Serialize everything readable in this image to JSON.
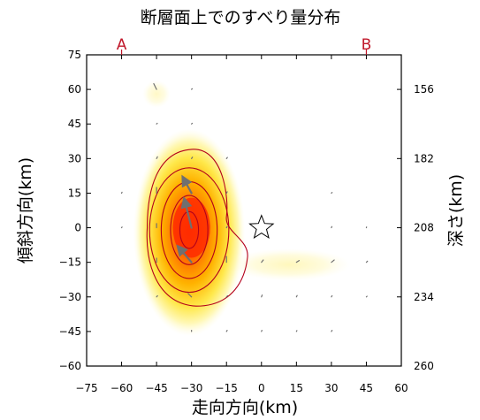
{
  "chart_data": {
    "type": "heatmap",
    "title": "断層面上でのすべり量分布",
    "xlabel": "走向方向(km)",
    "ylabel": "傾斜方向(km)",
    "y2label": "深さ(km)",
    "xlim": [
      -75,
      60
    ],
    "ylim": [
      -60,
      75
    ],
    "x_ticks": [
      -75,
      -60,
      -45,
      -30,
      -15,
      0,
      15,
      30,
      45,
      60
    ],
    "x_tick_labels": [
      "−75",
      "−60",
      "−45",
      "−30",
      "−15",
      "0",
      "15",
      "30",
      "45",
      "60"
    ],
    "y_ticks": [
      -60,
      -45,
      -30,
      -15,
      0,
      15,
      30,
      45,
      60,
      75
    ],
    "y_tick_labels": [
      "−60",
      "−45",
      "−30",
      "−15",
      "0",
      "15",
      "30",
      "45",
      "60",
      "75"
    ],
    "depth_ticks": [
      {
        "y": 60,
        "label": "156"
      },
      {
        "y": 30,
        "label": "182"
      },
      {
        "y": 0,
        "label": "208"
      },
      {
        "y": -30,
        "label": "234"
      },
      {
        "y": -60,
        "label": "260"
      }
    ],
    "section_ends": [
      {
        "label": "A",
        "x": -60
      },
      {
        "label": "B",
        "x": 45
      }
    ],
    "hypocenter": {
      "x": 0,
      "y": 0
    },
    "slip_peak": {
      "x": -30,
      "y": 0
    },
    "colors": {
      "low": "#fffde0",
      "mid": "#ffd500",
      "high": "#ff2b00",
      "contour": "#b3001b",
      "vector": "#707070",
      "ends": "#c0172a"
    },
    "slip_vectors": [
      {
        "x": -45,
        "y": 60,
        "dx": -1.2,
        "dy": 2.5
      },
      {
        "x": -30,
        "y": 60,
        "dx": 0.3,
        "dy": 0.3
      },
      {
        "x": -45,
        "y": 45,
        "dx": 0.3,
        "dy": 0.3
      },
      {
        "x": -30,
        "y": 45,
        "dx": 0.3,
        "dy": 0.3
      },
      {
        "x": -45,
        "y": 30,
        "dx": 0.4,
        "dy": 0.8
      },
      {
        "x": -30,
        "y": 30,
        "dx": 0.4,
        "dy": 0.6
      },
      {
        "x": -15,
        "y": 30,
        "dx": 0.4,
        "dy": 0.5
      },
      {
        "x": -60,
        "y": 15,
        "dx": 0.2,
        "dy": 0.4
      },
      {
        "x": -45,
        "y": 15,
        "dx": 0.0,
        "dy": 2.5
      },
      {
        "x": -30,
        "y": 15,
        "dx": -3.5,
        "dy": 6.5
      },
      {
        "x": -15,
        "y": 15,
        "dx": 0.3,
        "dy": 0.6
      },
      {
        "x": 30,
        "y": 15,
        "dx": 0.3,
        "dy": 0.3
      },
      {
        "x": -60,
        "y": 0,
        "dx": 0.2,
        "dy": 0.3
      },
      {
        "x": -45,
        "y": 0,
        "dx": 0.0,
        "dy": 1.8
      },
      {
        "x": -30,
        "y": 0,
        "dx": -3.0,
        "dy": 12.0
      },
      {
        "x": -15,
        "y": 0,
        "dx": 0.3,
        "dy": 0.5
      },
      {
        "x": 30,
        "y": 0,
        "dx": 0.2,
        "dy": 0.5
      },
      {
        "x": 45,
        "y": 0,
        "dx": 0.1,
        "dy": 0.3
      },
      {
        "x": -45,
        "y": -15,
        "dx": 0.0,
        "dy": 1.8
      },
      {
        "x": -30,
        "y": -15,
        "dx": -5.5,
        "dy": 6.5
      },
      {
        "x": -15,
        "y": -15,
        "dx": 0.0,
        "dy": 2.5
      },
      {
        "x": 0,
        "y": -15,
        "dx": 0.8,
        "dy": 1.0
      },
      {
        "x": 15,
        "y": -15,
        "dx": 1.2,
        "dy": 0.8
      },
      {
        "x": 30,
        "y": -15,
        "dx": 1.2,
        "dy": 1.0
      },
      {
        "x": 45,
        "y": -15,
        "dx": 0.5,
        "dy": 0.5
      },
      {
        "x": -45,
        "y": -30,
        "dx": 0.4,
        "dy": 0.5
      },
      {
        "x": -30,
        "y": -30,
        "dx": -1.5,
        "dy": 1.5
      },
      {
        "x": -15,
        "y": -30,
        "dx": 0.5,
        "dy": 0.5
      },
      {
        "x": 0,
        "y": -30,
        "dx": 0.3,
        "dy": 0.8
      },
      {
        "x": 15,
        "y": -30,
        "dx": 0.3,
        "dy": 0.6
      },
      {
        "x": 30,
        "y": -30,
        "dx": 0.3,
        "dy": 0.5
      },
      {
        "x": 45,
        "y": -30,
        "dx": 0.3,
        "dy": 0.3
      },
      {
        "x": -30,
        "y": -45,
        "dx": 0.0,
        "dy": 0.5
      },
      {
        "x": -15,
        "y": -45,
        "dx": 0.3,
        "dy": 0.5
      },
      {
        "x": 0,
        "y": -45,
        "dx": 0.2,
        "dy": 0.5
      },
      {
        "x": 15,
        "y": -45,
        "dx": 0.2,
        "dy": 0.4
      },
      {
        "x": 30,
        "y": -45,
        "dx": 0.3,
        "dy": 0.5
      }
    ]
  }
}
